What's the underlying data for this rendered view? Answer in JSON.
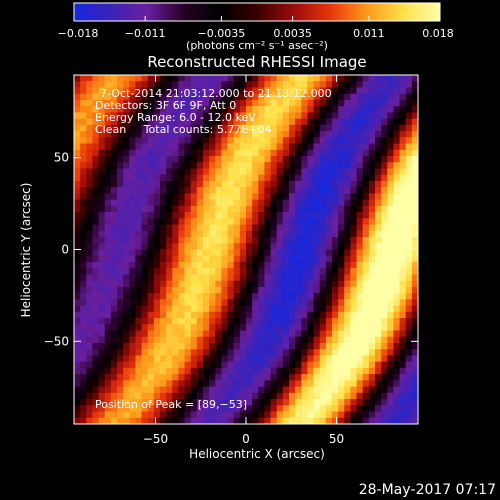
{
  "chart_data": {
    "type": "heatmap",
    "title": "Reconstructed RHESSI Image",
    "xlabel": "Heliocentric X (arcsec)",
    "ylabel": "Heliocentric Y (arcsec)",
    "xlim": [
      -95,
      95
    ],
    "ylim": [
      -95,
      95
    ],
    "x_ticks": [
      -50,
      0,
      50
    ],
    "y_ticks": [
      -50,
      0,
      50
    ],
    "x_tick_labels": [
      "−50",
      "0",
      "50"
    ],
    "y_tick_labels": [
      "−50",
      "0",
      "50"
    ],
    "colorbar": {
      "range": [
        -0.018,
        0.018
      ],
      "ticks": [
        -0.018,
        -0.011,
        -0.0035,
        0.0035,
        0.011,
        0.018
      ],
      "tick_labels": [
        "−0.018",
        "−0.011",
        "−0.0035",
        "0.0035",
        "0.011",
        "0.018"
      ],
      "unit_label": "(photons cm⁻² s⁻¹ asec⁻²)",
      "colors": [
        "#1428e0",
        "#3b22b8",
        "#6a1f9e",
        "#260025",
        "#000000",
        "#3a0000",
        "#9c0b0b",
        "#e8350a",
        "#ff9a1a",
        "#ffe04a",
        "#ffffa8"
      ]
    },
    "annotations": [
      "7‐Oct‐2014 21:03:12.000 to 21:13:12.000",
      "Detectors: 3F 6F 9F, Att 0",
      "Energy Range: 6.0 ‐ 12.0 keV",
      "Clean     Total counts: 5.77E+04"
    ],
    "peak_label": "Position of Peak = [89,−53]",
    "peak_position": [
      89,
      -53
    ],
    "grid": false
  },
  "footer": {
    "timestamp": "28‐May‐2017 07:17"
  }
}
